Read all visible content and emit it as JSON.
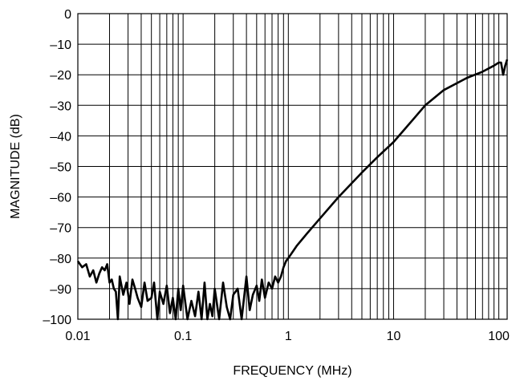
{
  "chart_data": {
    "type": "line",
    "xlabel": "FREQUENCY (MHz)",
    "ylabel": "MAGNITUDE (dB)",
    "x_scale": "log",
    "xlim": [
      0.01,
      120
    ],
    "ylim": [
      -100,
      0
    ],
    "x_ticks": [
      0.01,
      0.1,
      1,
      10,
      100
    ],
    "x_tick_labels": [
      "0.01",
      "0.1",
      "1",
      "10",
      "100"
    ],
    "y_ticks": [
      0,
      -10,
      -20,
      -30,
      -40,
      -50,
      -60,
      -70,
      -80,
      -90,
      -100
    ],
    "y_tick_labels": [
      "0",
      "–10",
      "–20",
      "–30",
      "–40",
      "–50",
      "–60",
      "–70",
      "–80",
      "–90",
      "–100"
    ],
    "grid": true,
    "colors": {
      "line": "#000000",
      "grid": "#000000",
      "background": "#ffffff"
    },
    "series": [
      {
        "x": [
          0.01,
          0.011,
          0.012,
          0.013,
          0.014,
          0.015,
          0.016,
          0.017,
          0.018,
          0.019,
          0.02,
          0.021,
          0.022,
          0.023,
          0.024,
          0.025,
          0.027,
          0.029,
          0.031,
          0.033,
          0.035,
          0.037,
          0.04,
          0.043,
          0.046,
          0.05,
          0.053,
          0.057,
          0.06,
          0.065,
          0.07,
          0.075,
          0.08,
          0.085,
          0.09,
          0.095,
          0.1,
          0.11,
          0.12,
          0.13,
          0.14,
          0.15,
          0.16,
          0.17,
          0.18,
          0.19,
          0.2,
          0.22,
          0.24,
          0.26,
          0.28,
          0.3,
          0.33,
          0.36,
          0.4,
          0.43,
          0.46,
          0.5,
          0.53,
          0.56,
          0.6,
          0.65,
          0.7,
          0.75,
          0.8,
          0.85,
          0.9,
          0.95,
          1.0,
          1.2,
          1.5,
          2.0,
          3.0,
          5.0,
          7.0,
          10,
          15,
          20,
          30,
          50,
          70,
          90,
          100,
          105,
          110,
          115,
          120
        ],
        "y": [
          -81,
          -83,
          -82,
          -86,
          -84,
          -88,
          -85,
          -83,
          -84,
          -82,
          -88,
          -87,
          -90,
          -91,
          -100,
          -86,
          -92,
          -88,
          -95,
          -87,
          -90,
          -93,
          -96,
          -88,
          -94,
          -93,
          -88,
          -100,
          -91,
          -95,
          -89,
          -98,
          -93,
          -100,
          -90,
          -97,
          -89,
          -100,
          -94,
          -99,
          -91,
          -100,
          -88,
          -100,
          -95,
          -99,
          -90,
          -100,
          -88,
          -96,
          -100,
          -92,
          -90,
          -100,
          -86,
          -97,
          -92,
          -89,
          -94,
          -87,
          -93,
          -88,
          -90,
          -86,
          -88,
          -86,
          -83,
          -81,
          -80,
          -76,
          -72,
          -67,
          -60,
          -52,
          -47,
          -42,
          -35,
          -30,
          -25,
          -21,
          -19,
          -17,
          -16,
          -16,
          -20,
          -17,
          -15
        ]
      }
    ]
  }
}
